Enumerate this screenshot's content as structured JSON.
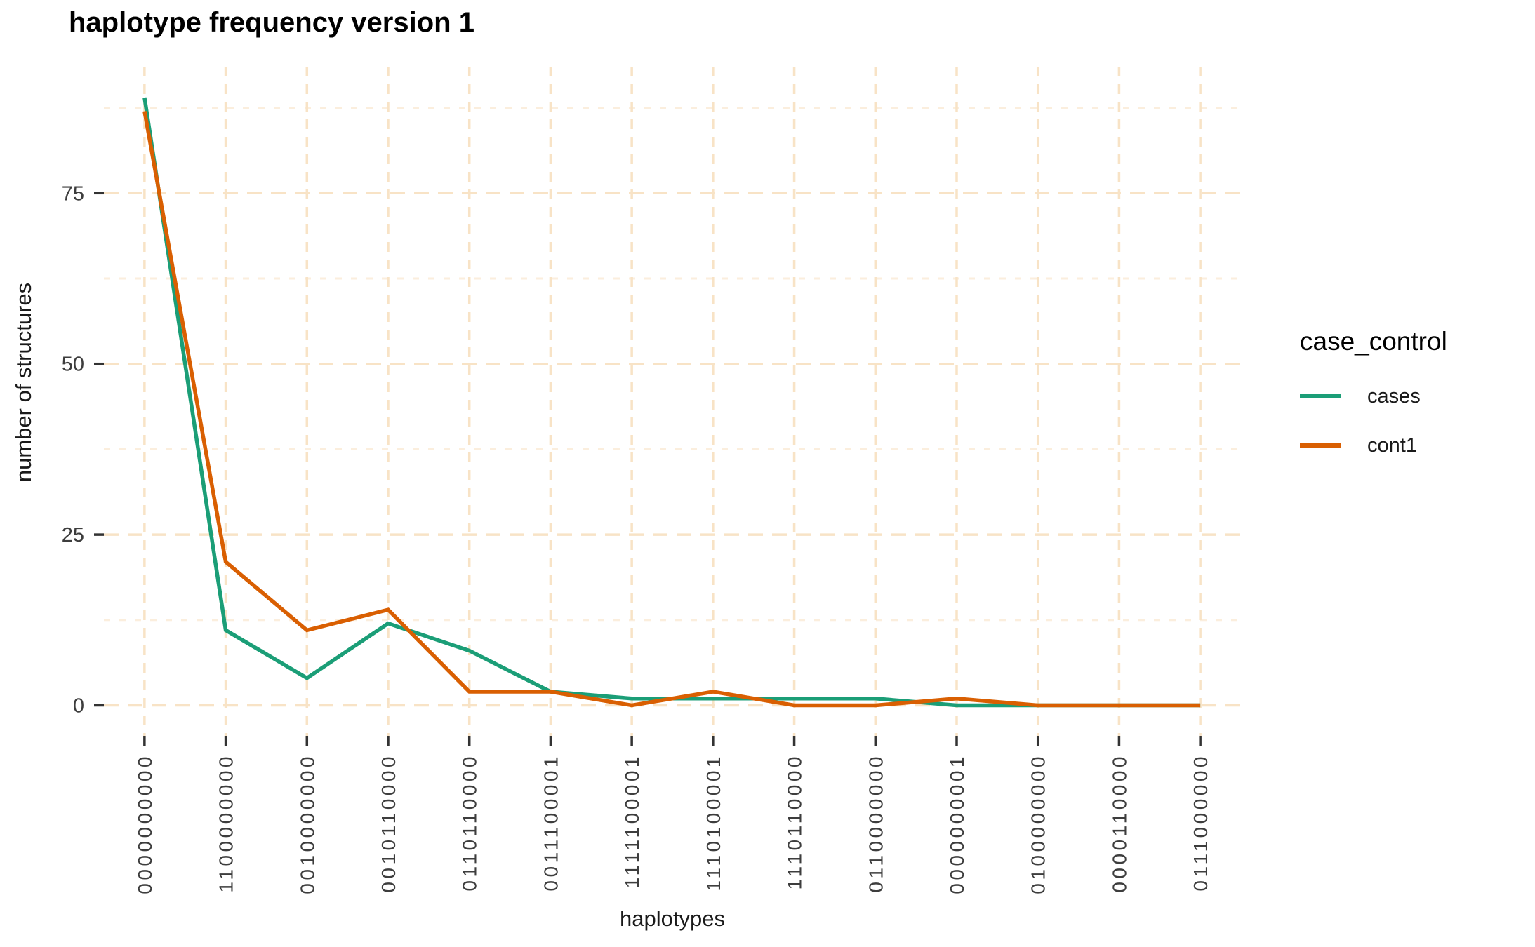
{
  "title": "haplotype frequency version 1",
  "chart_data": {
    "type": "line",
    "categories": [
      "0000000000",
      "1100000000",
      "0010000000",
      "0010110000",
      "0110110000",
      "0011100001",
      "1111100001",
      "1110100001",
      "1110110000",
      "0110000000",
      "0000000001",
      "0100000000",
      "0000110000",
      "0111000000"
    ],
    "series": [
      {
        "name": "cases",
        "color": "#1B9E77",
        "values": [
          89,
          11,
          4,
          12,
          8,
          2,
          1,
          1,
          1,
          1,
          0,
          0,
          0,
          0
        ]
      },
      {
        "name": "cont1",
        "color": "#D95F02",
        "values": [
          87,
          21,
          11,
          14,
          2,
          2,
          0,
          2,
          0,
          0,
          1,
          0,
          0,
          0
        ]
      }
    ],
    "title": "haplotype frequency version 1",
    "xlabel": "haplotypes",
    "ylabel": "number of structures",
    "yticks": [
      0,
      25,
      50,
      75
    ],
    "y_minor_ticks": [
      12.5,
      37.5,
      62.5,
      87.5
    ],
    "ylim": [
      -4.5,
      93.5
    ],
    "grid": "dashed",
    "legend": {
      "title": "case_control",
      "position": "right"
    },
    "colors": {
      "major_grid": "#F8E3C6",
      "minor_grid": "#FBEEDD",
      "axis_text": "#3d3d3d",
      "tick_mark": "#333333"
    }
  }
}
